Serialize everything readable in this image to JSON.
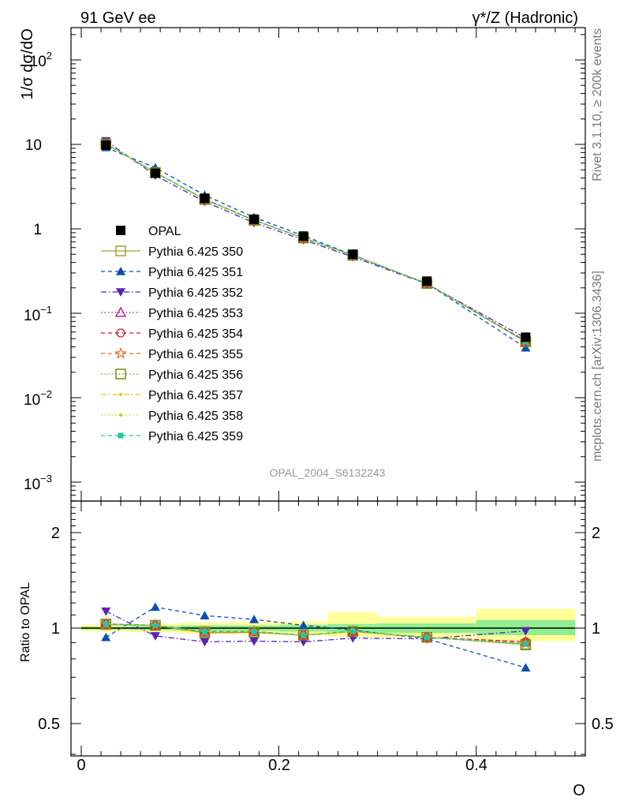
{
  "header": {
    "left": "91 GeV ee",
    "right": "γ*/Z (Hadronic)"
  },
  "side_labels": {
    "rivet": "Rivet 3.1.10, ≥ 200k events",
    "mcplots": "mcplots.cern.ch [arXiv:1306.3436]"
  },
  "watermark": "OPAL_2004_S6132243",
  "axes": {
    "ylabel_main": "1/σ dσ/dO",
    "ylabel_ratio": "Ratio to OPAL",
    "xlabel": "O",
    "x_ticks": [
      "0",
      "0.2",
      "0.4"
    ],
    "y_main_ticks": [
      "10^-3",
      "10^-2",
      "10^-1",
      "1",
      "10",
      "10^2"
    ],
    "y_main_tick_text": {
      "e_m3": {
        "base": "10",
        "exp": "−3"
      },
      "e_m2": {
        "base": "10",
        "exp": "−2"
      },
      "e_m1": {
        "base": "10",
        "exp": "−1"
      },
      "one": "1",
      "ten": "10",
      "e_2": {
        "base": "10",
        "exp": "2"
      }
    },
    "y_ratio_ticks": [
      "0.5",
      "1",
      "2"
    ]
  },
  "chart_data": [
    {
      "type": "line",
      "panel": "main",
      "title": "",
      "xlabel": "O",
      "ylabel": "1/σ dσ/dO",
      "xlim": [
        -0.013,
        0.505
      ],
      "ylim": [
        0.0006,
        250
      ],
      "yscale": "log",
      "grid": false,
      "legend_position": "left-center",
      "x": [
        0.025,
        0.075,
        0.125,
        0.175,
        0.225,
        0.275,
        0.35,
        0.45
      ],
      "x_bin_edges": [
        0.0,
        0.05,
        0.1,
        0.15,
        0.2,
        0.25,
        0.3,
        0.4,
        0.5
      ],
      "series": [
        {
          "name": "OPAL",
          "values": [
            9.8,
            4.55,
            2.3,
            1.3,
            0.82,
            0.5,
            0.24,
            0.052
          ],
          "color": "#000000",
          "marker": "filled-square",
          "style": "points"
        },
        {
          "name": "Pythia 6.425 350",
          "values": [
            10.1,
            4.65,
            2.22,
            1.26,
            0.78,
            0.485,
            0.225,
            0.046
          ],
          "color": "#a4a232",
          "marker": "open-square",
          "style": "solid"
        },
        {
          "name": "Pythia 6.425 351",
          "values": [
            9.2,
            5.3,
            2.5,
            1.37,
            0.83,
            0.49,
            0.225,
            0.039
          ],
          "color": "#0b4fb0",
          "marker": "filled-triangle-up",
          "style": "dashed"
        },
        {
          "name": "Pythia 6.425 352",
          "values": [
            11.0,
            4.3,
            2.1,
            1.18,
            0.74,
            0.465,
            0.222,
            0.051
          ],
          "color": "#5b21b6",
          "marker": "filled-triangle-down",
          "style": "dashdot"
        },
        {
          "name": "Pythia 6.425 353",
          "values": [
            10.1,
            4.65,
            2.25,
            1.27,
            0.78,
            0.485,
            0.225,
            0.047
          ],
          "color": "#a0168f",
          "marker": "open-triangle-up",
          "style": "dotted"
        },
        {
          "name": "Pythia 6.425 354",
          "values": [
            10.1,
            4.65,
            2.25,
            1.27,
            0.78,
            0.485,
            0.225,
            0.047
          ],
          "color": "#e0122c",
          "marker": "open-circle",
          "style": "dashed"
        },
        {
          "name": "Pythia 6.425 355",
          "values": [
            10.1,
            4.65,
            2.24,
            1.27,
            0.78,
            0.485,
            0.225,
            0.046
          ],
          "color": "#ef6a1b",
          "marker": "open-star",
          "style": "dashed"
        },
        {
          "name": "Pythia 6.425 356",
          "values": [
            10.1,
            4.65,
            2.24,
            1.26,
            0.78,
            0.485,
            0.225,
            0.046
          ],
          "color": "#7a8c12",
          "marker": "open-square",
          "style": "dotted"
        },
        {
          "name": "Pythia 6.425 357",
          "values": [
            10.1,
            4.65,
            2.24,
            1.27,
            0.78,
            0.485,
            0.225,
            0.046
          ],
          "color": "#e6c411",
          "marker": "dot",
          "style": "dashdot"
        },
        {
          "name": "Pythia 6.425 358",
          "values": [
            10.1,
            4.65,
            2.24,
            1.27,
            0.78,
            0.485,
            0.225,
            0.046
          ],
          "color": "#bcd21a",
          "marker": "dot",
          "style": "dotted"
        },
        {
          "name": "Pythia 6.425 359",
          "values": [
            10.1,
            4.65,
            2.24,
            1.27,
            0.78,
            0.49,
            0.225,
            0.046
          ],
          "color": "#1ec9a0",
          "marker": "filled-square-small",
          "style": "dashed"
        }
      ]
    },
    {
      "type": "line",
      "panel": "ratio",
      "ylabel": "Ratio to OPAL",
      "xlabel": "O",
      "xlim": [
        -0.013,
        0.505
      ],
      "ylim": [
        0.4,
        2.5
      ],
      "yscale": "log",
      "grid": false,
      "x": [
        0.025,
        0.075,
        0.125,
        0.175,
        0.225,
        0.275,
        0.35,
        0.45
      ],
      "reference_band": {
        "edges": [
          0.0,
          0.05,
          0.1,
          0.15,
          0.2,
          0.25,
          0.3,
          0.4,
          0.5
        ],
        "stat": [
          [
            0.99,
            1.01
          ],
          [
            0.985,
            1.015
          ],
          [
            0.98,
            1.02
          ],
          [
            0.98,
            1.02
          ],
          [
            0.975,
            1.025
          ],
          [
            0.97,
            1.03
          ],
          [
            0.965,
            1.035
          ],
          [
            0.95,
            1.06
          ]
        ],
        "total": [
          [
            0.975,
            1.025
          ],
          [
            0.97,
            1.03
          ],
          [
            0.96,
            1.04
          ],
          [
            0.955,
            1.045
          ],
          [
            0.95,
            1.05
          ],
          [
            0.94,
            1.12
          ],
          [
            0.935,
            1.085
          ],
          [
            0.91,
            1.15
          ]
        ],
        "stat_color": "#90ee90",
        "total_color": "#ffff99"
      },
      "series": [
        {
          "name": "Pythia 6.425 350",
          "values": [
            1.025,
            1.02,
            0.965,
            0.97,
            0.95,
            0.975,
            0.935,
            0.89
          ],
          "color": "#a4a232",
          "marker": "open-square",
          "style": "solid"
        },
        {
          "name": "Pythia 6.425 351",
          "values": [
            0.935,
            1.165,
            1.095,
            1.065,
            1.02,
            0.985,
            0.925,
            0.75
          ],
          "color": "#0b4fb0",
          "marker": "filled-triangle-up",
          "style": "dashed"
        },
        {
          "name": "Pythia 6.425 352",
          "values": [
            1.13,
            0.945,
            0.905,
            0.91,
            0.905,
            0.93,
            0.925,
            0.98
          ],
          "color": "#5b21b6",
          "marker": "filled-triangle-down",
          "style": "dashdot"
        },
        {
          "name": "Pythia 6.425 353",
          "values": [
            1.03,
            1.02,
            0.975,
            0.975,
            0.95,
            0.975,
            0.935,
            0.905
          ],
          "color": "#a0168f",
          "marker": "open-triangle-up",
          "style": "dotted"
        },
        {
          "name": "Pythia 6.425 354",
          "values": [
            1.03,
            1.02,
            0.975,
            0.975,
            0.95,
            0.975,
            0.935,
            0.905
          ],
          "color": "#e0122c",
          "marker": "open-circle",
          "style": "dashed"
        },
        {
          "name": "Pythia 6.425 355",
          "values": [
            1.03,
            1.02,
            0.975,
            0.975,
            0.95,
            0.975,
            0.935,
            0.895
          ],
          "color": "#ef6a1b",
          "marker": "open-star",
          "style": "dashed"
        },
        {
          "name": "Pythia 6.425 356",
          "values": [
            1.03,
            1.02,
            0.972,
            0.97,
            0.95,
            0.975,
            0.935,
            0.885
          ],
          "color": "#7a8c12",
          "marker": "open-square",
          "style": "dotted"
        },
        {
          "name": "Pythia 6.425 357",
          "values": [
            1.03,
            1.02,
            0.975,
            0.975,
            0.95,
            0.975,
            0.935,
            0.895
          ],
          "color": "#e6c411",
          "marker": "dot",
          "style": "dashdot"
        },
        {
          "name": "Pythia 6.425 358",
          "values": [
            1.03,
            1.02,
            0.975,
            0.975,
            0.95,
            0.975,
            0.935,
            0.895
          ],
          "color": "#bcd21a",
          "marker": "dot",
          "style": "dotted"
        },
        {
          "name": "Pythia 6.425 359",
          "values": [
            1.03,
            1.02,
            0.975,
            0.975,
            0.95,
            0.98,
            0.935,
            0.89
          ],
          "color": "#1ec9a0",
          "marker": "filled-square-small",
          "style": "dashed"
        }
      ]
    }
  ]
}
